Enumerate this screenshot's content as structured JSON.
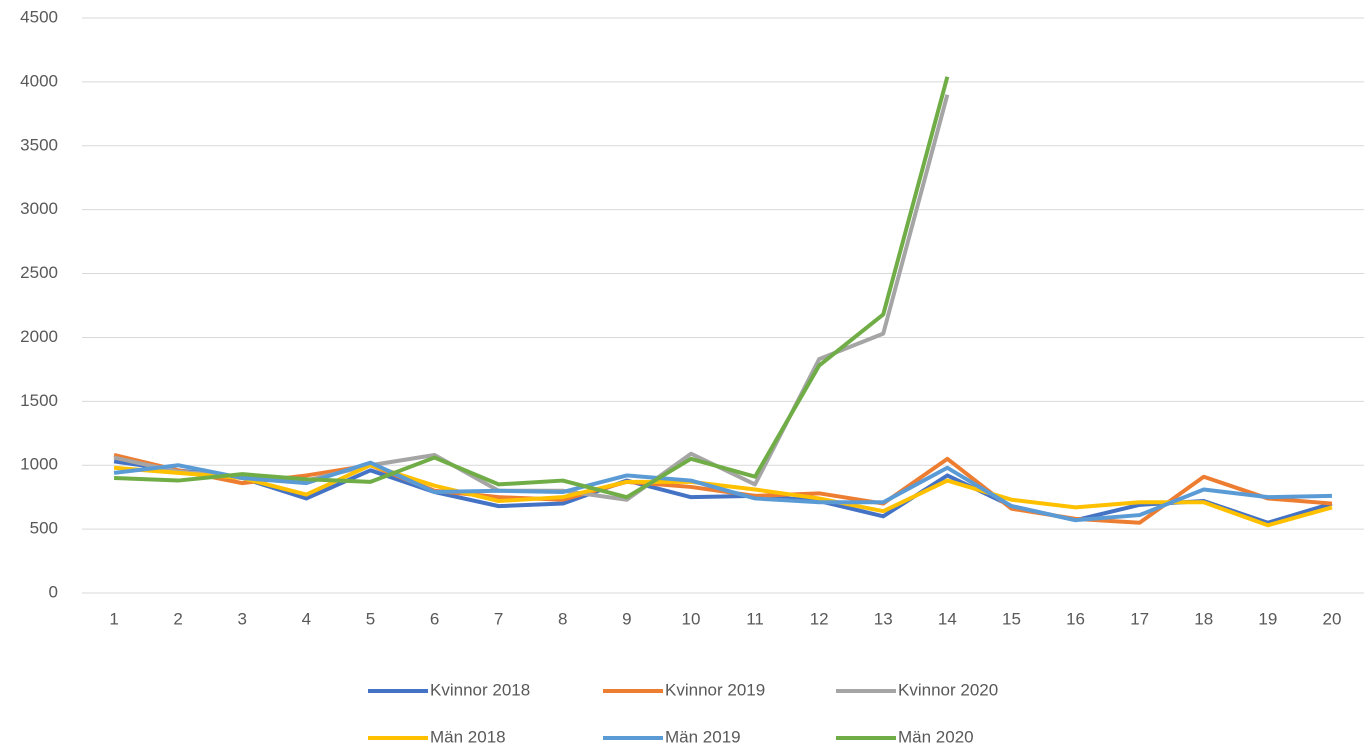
{
  "chart_data": {
    "type": "line",
    "categories": [
      "1",
      "2",
      "3",
      "4",
      "5",
      "6",
      "7",
      "8",
      "9",
      "10",
      "11",
      "12",
      "13",
      "14",
      "15",
      "16",
      "17",
      "18",
      "19",
      "20"
    ],
    "series": [
      {
        "name": "Kvinnor 2018",
        "color": "#4472c4",
        "values": [
          1030,
          960,
          900,
          740,
          960,
          790,
          680,
          700,
          880,
          750,
          760,
          720,
          600,
          920,
          680,
          570,
          690,
          720,
          550,
          700
        ]
      },
      {
        "name": "Kvinnor 2019",
        "color": "#ed7d31",
        "values": [
          1080,
          960,
          860,
          920,
          1000,
          800,
          750,
          730,
          870,
          830,
          760,
          780,
          700,
          1050,
          660,
          580,
          550,
          910,
          740,
          700
        ]
      },
      {
        "name": "Kvinnor 2020",
        "color": "#a5a5a5",
        "values": [
          1060,
          950,
          910,
          880,
          1000,
          1080,
          800,
          800,
          730,
          1090,
          850,
          1830,
          2030,
          3900,
          null,
          null,
          null,
          null,
          null,
          null
        ]
      },
      {
        "name": "Män 2018",
        "color": "#ffc000",
        "values": [
          980,
          940,
          900,
          770,
          1000,
          840,
          720,
          750,
          870,
          870,
          810,
          740,
          640,
          880,
          730,
          670,
          710,
          710,
          530,
          670
        ]
      },
      {
        "name": "Män 2019",
        "color": "#5b9bd5",
        "values": [
          940,
          1000,
          900,
          860,
          1020,
          790,
          800,
          790,
          920,
          880,
          740,
          710,
          710,
          980,
          680,
          570,
          610,
          810,
          750,
          760
        ]
      },
      {
        "name": "Män 2020",
        "color": "#70ad47",
        "values": [
          900,
          880,
          930,
          890,
          870,
          1060,
          850,
          880,
          750,
          1050,
          910,
          1780,
          2180,
          4040,
          null,
          null,
          null,
          null,
          null,
          null
        ]
      }
    ],
    "ylim": [
      0,
      4500
    ],
    "yticks": [
      0,
      500,
      1000,
      1500,
      2000,
      2500,
      3000,
      3500,
      4000,
      4500
    ],
    "grid": true,
    "legend": "bottom"
  }
}
